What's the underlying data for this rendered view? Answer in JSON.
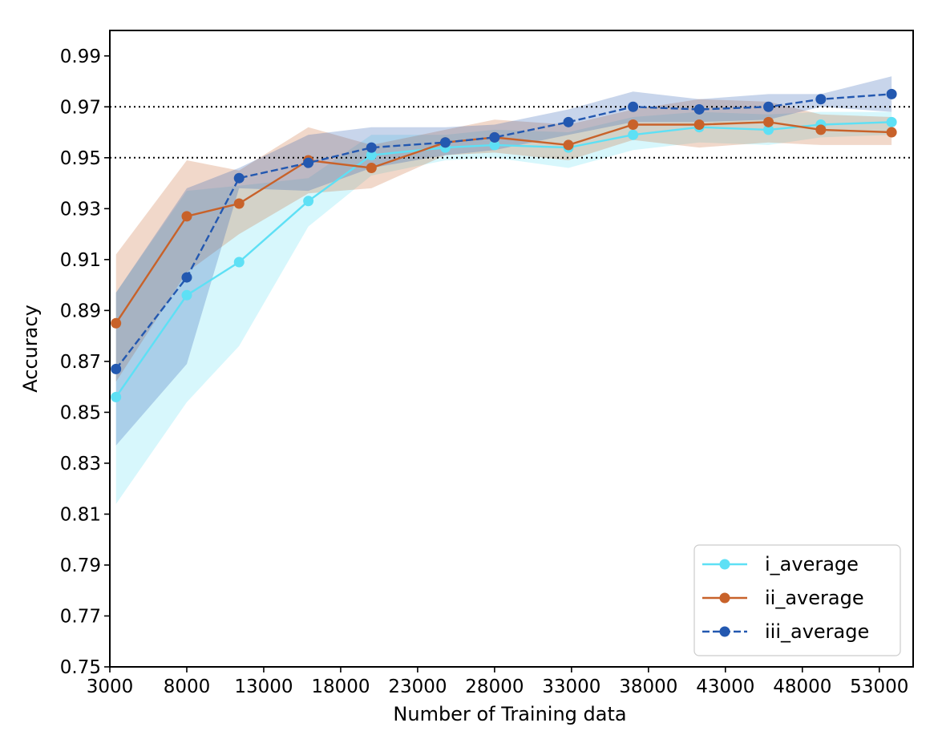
{
  "chart_data": {
    "type": "line",
    "xlabel": "Number of Training data",
    "ylabel": "Accuracy",
    "xlim": [
      3000,
      55200
    ],
    "ylim": [
      0.75,
      1.0
    ],
    "xticks": [
      3000,
      8000,
      13000,
      18000,
      23000,
      28000,
      33000,
      38000,
      43000,
      48000,
      53000
    ],
    "xtick_labels": [
      "3000",
      "8000",
      "13000",
      "18000",
      "23000",
      "28000",
      "33000",
      "38000",
      "43000",
      "48000",
      "53000"
    ],
    "yticks": [
      0.75,
      0.77,
      0.79,
      0.81,
      0.83,
      0.85,
      0.87,
      0.89,
      0.91,
      0.93,
      0.95,
      0.97,
      0.99
    ],
    "ytick_labels": [
      "0.75",
      "0.77",
      "0.79",
      "0.81",
      "0.83",
      "0.85",
      "0.87",
      "0.89",
      "0.91",
      "0.93",
      "0.95",
      "0.97",
      "0.99"
    ],
    "reference_lines": [
      0.95,
      0.97
    ],
    "legend_position": "lower-right",
    "series": [
      {
        "name": "i_average",
        "color": "#5ee0f5",
        "line_style": "solid",
        "x": [
          3400,
          8000,
          11400,
          15900,
          20000,
          24800,
          28000,
          32800,
          37000,
          41300,
          45800,
          49200,
          53800
        ],
        "values": [
          0.856,
          0.896,
          0.909,
          0.933,
          0.951,
          0.954,
          0.955,
          0.954,
          0.959,
          0.962,
          0.961,
          0.963,
          0.964
        ],
        "upper": [
          0.897,
          0.937,
          0.939,
          0.942,
          0.959,
          0.959,
          0.961,
          0.96,
          0.966,
          0.968,
          0.967,
          0.968,
          0.968
        ],
        "lower": [
          0.814,
          0.854,
          0.876,
          0.923,
          0.943,
          0.949,
          0.95,
          0.946,
          0.953,
          0.956,
          0.955,
          0.958,
          0.959
        ]
      },
      {
        "name": "ii_average",
        "color": "#c8622a",
        "line_style": "solid",
        "x": [
          3400,
          8000,
          11400,
          15900,
          20000,
          24800,
          28000,
          32800,
          37000,
          41300,
          45800,
          49200,
          53800
        ],
        "values": [
          0.885,
          0.927,
          0.932,
          0.949,
          0.946,
          0.956,
          0.958,
          0.955,
          0.963,
          0.963,
          0.964,
          0.961,
          0.96
        ],
        "upper": [
          0.912,
          0.949,
          0.945,
          0.962,
          0.955,
          0.961,
          0.965,
          0.963,
          0.969,
          0.973,
          0.972,
          0.967,
          0.966
        ],
        "lower": [
          0.862,
          0.905,
          0.92,
          0.936,
          0.938,
          0.951,
          0.952,
          0.949,
          0.957,
          0.954,
          0.956,
          0.955,
          0.955
        ]
      },
      {
        "name": "iii_average",
        "color": "#2358b0",
        "line_style": "dashed",
        "x": [
          3400,
          8000,
          11400,
          15900,
          20000,
          24800,
          28000,
          32800,
          37000,
          41300,
          45800,
          49200,
          53800
        ],
        "values": [
          0.867,
          0.903,
          0.942,
          0.948,
          0.954,
          0.956,
          0.958,
          0.964,
          0.97,
          0.969,
          0.97,
          0.973,
          0.975
        ],
        "upper": [
          0.897,
          0.938,
          0.946,
          0.959,
          0.962,
          0.962,
          0.963,
          0.969,
          0.976,
          0.973,
          0.975,
          0.975,
          0.982
        ],
        "lower": [
          0.837,
          0.869,
          0.938,
          0.937,
          0.946,
          0.951,
          0.953,
          0.959,
          0.964,
          0.964,
          0.965,
          0.97,
          0.968
        ]
      }
    ]
  }
}
